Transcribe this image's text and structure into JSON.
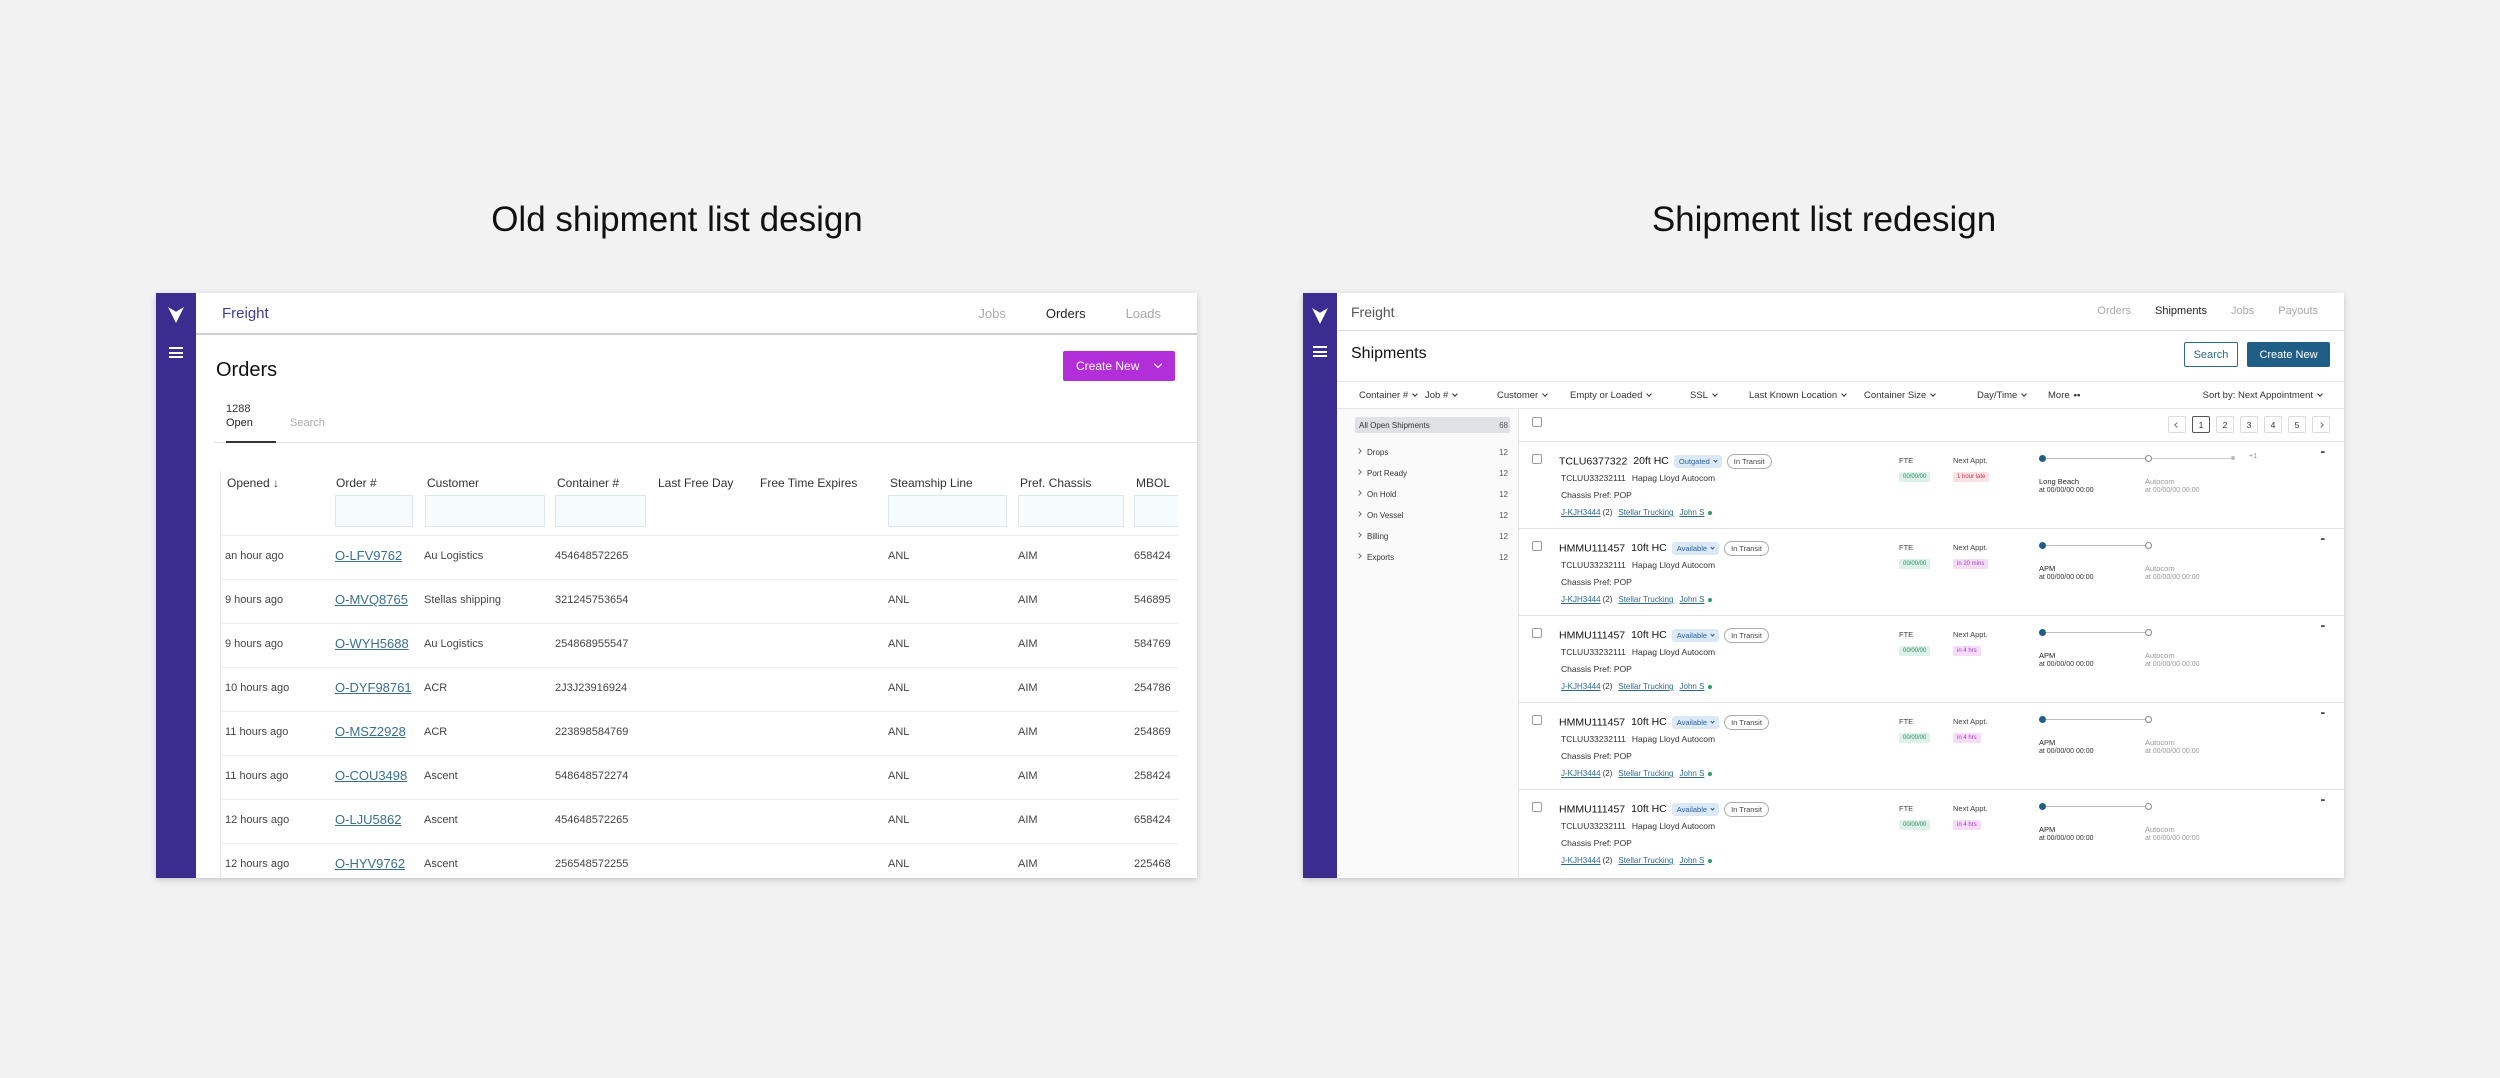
{
  "headings": {
    "old": "Old shipment list design",
    "new": "Shipment list redesign"
  },
  "old": {
    "brand": "Freight",
    "nav": [
      "Jobs",
      "Orders",
      "Loads"
    ],
    "nav_active": "Orders",
    "title": "Orders",
    "create_label": "Create New",
    "tab_open_count": "1288",
    "tab_open_label": "Open",
    "tab_search_label": "Search",
    "columns": [
      "Opened",
      "Order #",
      "Customer",
      "Container #",
      "Last Free Day",
      "Free Time Expires",
      "Steamship Line",
      "Pref. Chassis",
      "MBOL"
    ],
    "rows": [
      {
        "opened": "an hour ago",
        "order": "O-LFV9762",
        "customer": "Au Logistics",
        "container": "454648572265",
        "ssl": "ANL",
        "chassis": "AIM",
        "mbol": "658424"
      },
      {
        "opened": "9 hours ago",
        "order": "O-MVQ8765",
        "customer": "Stellas shipping",
        "container": "321245753654",
        "ssl": "ANL",
        "chassis": "AIM",
        "mbol": "546895"
      },
      {
        "opened": "9 hours ago",
        "order": "O-WYH5688",
        "customer": "Au Logistics",
        "container": "254868955547",
        "ssl": "ANL",
        "chassis": "AIM",
        "mbol": "584769"
      },
      {
        "opened": "10 hours ago",
        "order": "O-DYF98761",
        "customer": "ACR",
        "container": "2J3J23916924",
        "ssl": "ANL",
        "chassis": "AIM",
        "mbol": "254786"
      },
      {
        "opened": "11 hours ago",
        "order": "O-MSZ2928",
        "customer": "ACR",
        "container": "223898584769",
        "ssl": "ANL",
        "chassis": "AIM",
        "mbol": "254869"
      },
      {
        "opened": "11 hours ago",
        "order": "O-COU3498",
        "customer": "Ascent",
        "container": "548648572274",
        "ssl": "ANL",
        "chassis": "AIM",
        "mbol": "258424"
      },
      {
        "opened": "12 hours ago",
        "order": "O-LJU5862",
        "customer": "Ascent",
        "container": "454648572265",
        "ssl": "ANL",
        "chassis": "AIM",
        "mbol": "658424"
      },
      {
        "opened": "12 hours ago",
        "order": "O-HYV9762",
        "customer": "Ascent",
        "container": "256548572255",
        "ssl": "ANL",
        "chassis": "AIM",
        "mbol": "225468"
      }
    ],
    "accent": "#b22ed8",
    "rail_color": "#3b2d8f"
  },
  "new": {
    "brand": "Freight",
    "nav": [
      "Orders",
      "Shipments",
      "Jobs",
      "Payouts"
    ],
    "nav_active": "Shipments",
    "title": "Shipments",
    "search_label": "Search",
    "create_label": "Create New",
    "filters": [
      "Container #",
      "Job #",
      "Customer",
      "Empty or Loaded",
      "SSL",
      "Last Known Location",
      "Container Size",
      "Day/Time",
      "More"
    ],
    "sort_label": "Sort by: Next Appointment",
    "sidebar": [
      {
        "name": "All Open Shipments",
        "count": "68"
      },
      {
        "name": "Drops",
        "count": "12"
      },
      {
        "name": "Port Ready",
        "count": "12"
      },
      {
        "name": "On Hold",
        "count": "12"
      },
      {
        "name": "On Vessel",
        "count": "12"
      },
      {
        "name": "Billing",
        "count": "12"
      },
      {
        "name": "Exports",
        "count": "12"
      }
    ],
    "pages": [
      "1",
      "2",
      "3",
      "4",
      "5"
    ],
    "shipments": [
      {
        "container": "TCLU6377322",
        "size": "20ft HC",
        "status": "Outgated",
        "transit": "In Transit",
        "tclu": "TCLUU33232111",
        "ssl": "Hapag Lloyd Autocom",
        "pref": "Chassis Pref: POP",
        "job": "J-KJH3444",
        "count": "(2)",
        "carrier": "Stellar Trucking",
        "driver": "John S",
        "fte_label": "FTE",
        "fte": "00/00/00",
        "appt_label": "Next Appt.",
        "appt": "1 hour late",
        "appt_kind": "late",
        "from": "Long Beach",
        "from_time": "at 00/00/00 00:00",
        "to": "Autocom",
        "to_time": "at 00/00/00 00:00",
        "extra": "+1"
      },
      {
        "container": "HMMU111457",
        "size": "10ft HC",
        "status": "Available",
        "transit": "In Transit",
        "tclu": "TCLUU33232111",
        "ssl": "Hapag Lloyd Autocom",
        "pref": "Chassis Pref: POP",
        "job": "J-KJH3444",
        "count": "(2)",
        "carrier": "Stellar Trucking",
        "driver": "John S",
        "fte_label": "FTE",
        "fte": "00/00/00",
        "appt_label": "Next Appt.",
        "appt": "in 20 mins",
        "appt_kind": "soon",
        "from": "APM",
        "from_time": "at 00/00/00 00:00",
        "to": "Autocom",
        "to_time": "at 00/00/00 00:00",
        "extra": ""
      },
      {
        "container": "HMMU111457",
        "size": "10ft HC",
        "status": "Available",
        "transit": "In Transit",
        "tclu": "TCLUU33232111",
        "ssl": "Hapag Lloyd Autocom",
        "pref": "Chassis Pref: POP",
        "job": "J-KJH3444",
        "count": "(2)",
        "carrier": "Stellar Trucking",
        "driver": "John S",
        "fte_label": "FTE",
        "fte": "00/00/00",
        "appt_label": "Next Appt.",
        "appt": "in 4 hrs",
        "appt_kind": "soon",
        "from": "APM",
        "from_time": "at 00/00/00 00:00",
        "to": "Autocom",
        "to_time": "at 00/00/00 00:00",
        "extra": ""
      },
      {
        "container": "HMMU111457",
        "size": "10ft HC",
        "status": "Available",
        "transit": "In Transit",
        "tclu": "TCLUU33232111",
        "ssl": "Hapag Lloyd Autocom",
        "pref": "Chassis Pref: POP",
        "job": "J-KJH3444",
        "count": "(2)",
        "carrier": "Stellar Trucking",
        "driver": "John S",
        "fte_label": "FTE",
        "fte": "00/00/00",
        "appt_label": "Next Appt.",
        "appt": "in 4 hrs",
        "appt_kind": "soon",
        "from": "APM",
        "from_time": "at 00/00/00 00:00",
        "to": "Autocom",
        "to_time": "at 00/00/00 00:00",
        "extra": ""
      },
      {
        "container": "HMMU111457",
        "size": "10ft HC",
        "status": "Available",
        "transit": "In Transit",
        "tclu": "TCLUU33232111",
        "ssl": "Hapag Lloyd Autocom",
        "pref": "Chassis Pref: POP",
        "job": "J-KJH3444",
        "count": "(2)",
        "carrier": "Stellar Trucking",
        "driver": "John S",
        "fte_label": "FTE",
        "fte": "00/00/00",
        "appt_label": "Next Appt.",
        "appt": "in 4 hrs",
        "appt_kind": "soon",
        "from": "APM",
        "from_time": "at 00/00/00 00:00",
        "to": "Autocom",
        "to_time": "at 00/00/00 00:00",
        "extra": ""
      }
    ],
    "primary_color": "#1f5f87"
  }
}
